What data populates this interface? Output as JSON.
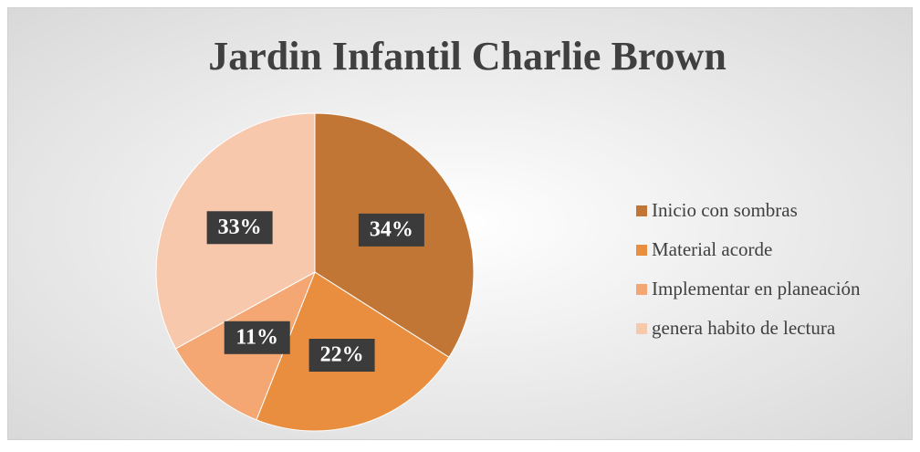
{
  "chart_data": {
    "type": "pie",
    "title": "Jardin Infantil Charlie Brown",
    "categories": [
      "Inicio con sombras",
      "Material acorde",
      "Implementar en planeación",
      "genera habito de lectura"
    ],
    "values": [
      34,
      22,
      11,
      33
    ],
    "value_labels": [
      "34%",
      "22%",
      "11%",
      "33%"
    ],
    "colors": [
      "#c17636",
      "#e98e3f",
      "#f4a772",
      "#f8c8ad"
    ],
    "legend": "right"
  }
}
